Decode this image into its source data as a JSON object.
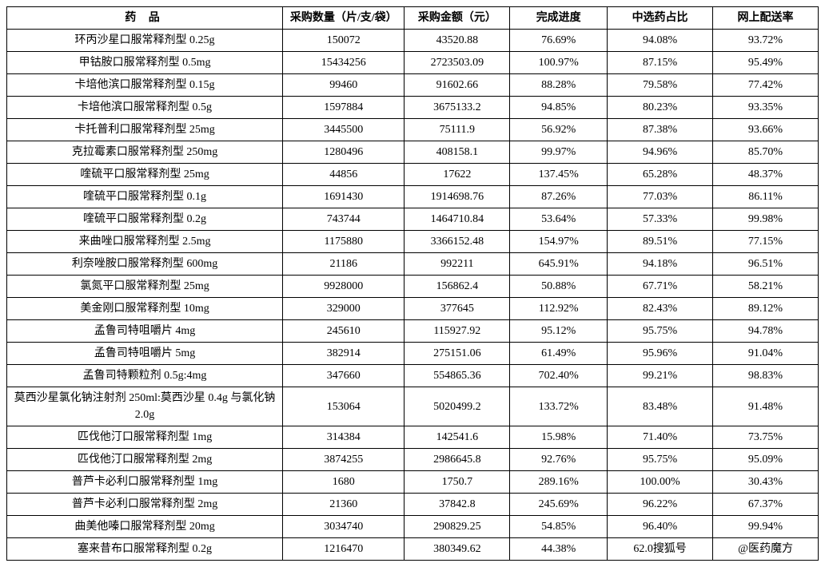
{
  "table": {
    "headers": {
      "drug": "药 品",
      "qty": "采购数量（片/支/袋）",
      "amount": "采购金额（元）",
      "progress": "完成进度",
      "ratio": "中选药占比",
      "delivery": "网上配送率"
    },
    "rows": [
      {
        "drug": "环丙沙星口服常释剂型 0.25g",
        "qty": "150072",
        "amount": "43520.88",
        "progress": "76.69%",
        "ratio": "94.08%",
        "delivery": "93.72%"
      },
      {
        "drug": "甲钴胺口服常释剂型 0.5mg",
        "qty": "15434256",
        "amount": "2723503.09",
        "progress": "100.97%",
        "ratio": "87.15%",
        "delivery": "95.49%"
      },
      {
        "drug": "卡培他滨口服常释剂型 0.15g",
        "qty": "99460",
        "amount": "91602.66",
        "progress": "88.28%",
        "ratio": "79.58%",
        "delivery": "77.42%"
      },
      {
        "drug": "卡培他滨口服常释剂型 0.5g",
        "qty": "1597884",
        "amount": "3675133.2",
        "progress": "94.85%",
        "ratio": "80.23%",
        "delivery": "93.35%"
      },
      {
        "drug": "卡托普利口服常释剂型 25mg",
        "qty": "3445500",
        "amount": "75111.9",
        "progress": "56.92%",
        "ratio": "87.38%",
        "delivery": "93.66%"
      },
      {
        "drug": "克拉霉素口服常释剂型 250mg",
        "qty": "1280496",
        "amount": "408158.1",
        "progress": "99.97%",
        "ratio": "94.96%",
        "delivery": "85.70%"
      },
      {
        "drug": "喹硫平口服常释剂型 25mg",
        "qty": "44856",
        "amount": "17622",
        "progress": "137.45%",
        "ratio": "65.28%",
        "delivery": "48.37%"
      },
      {
        "drug": "喹硫平口服常释剂型 0.1g",
        "qty": "1691430",
        "amount": "1914698.76",
        "progress": "87.26%",
        "ratio": "77.03%",
        "delivery": "86.11%"
      },
      {
        "drug": "喹硫平口服常释剂型 0.2g",
        "qty": "743744",
        "amount": "1464710.84",
        "progress": "53.64%",
        "ratio": "57.33%",
        "delivery": "99.98%"
      },
      {
        "drug": "来曲唑口服常释剂型 2.5mg",
        "qty": "1175880",
        "amount": "3366152.48",
        "progress": "154.97%",
        "ratio": "89.51%",
        "delivery": "77.15%"
      },
      {
        "drug": "利奈唑胺口服常释剂型 600mg",
        "qty": "21186",
        "amount": "992211",
        "progress": "645.91%",
        "ratio": "94.18%",
        "delivery": "96.51%"
      },
      {
        "drug": "氯氮平口服常释剂型 25mg",
        "qty": "9928000",
        "amount": "156862.4",
        "progress": "50.88%",
        "ratio": "67.71%",
        "delivery": "58.21%"
      },
      {
        "drug": "美金刚口服常释剂型 10mg",
        "qty": "329000",
        "amount": "377645",
        "progress": "112.92%",
        "ratio": "82.43%",
        "delivery": "89.12%"
      },
      {
        "drug": "孟鲁司特咀嚼片 4mg",
        "qty": "245610",
        "amount": "115927.92",
        "progress": "95.12%",
        "ratio": "95.75%",
        "delivery": "94.78%"
      },
      {
        "drug": "孟鲁司特咀嚼片 5mg",
        "qty": "382914",
        "amount": "275151.06",
        "progress": "61.49%",
        "ratio": "95.96%",
        "delivery": "91.04%"
      },
      {
        "drug": "孟鲁司特颗粒剂 0.5g:4mg",
        "qty": "347660",
        "amount": "554865.36",
        "progress": "702.40%",
        "ratio": "99.21%",
        "delivery": "98.83%"
      },
      {
        "drug": "莫西沙星氯化钠注射剂 250ml:莫西沙星 0.4g 与氯化钠 2.0g",
        "qty": "153064",
        "amount": "5020499.2",
        "progress": "133.72%",
        "ratio": "83.48%",
        "delivery": "91.48%"
      },
      {
        "drug": "匹伐他汀口服常释剂型 1mg",
        "qty": "314384",
        "amount": "142541.6",
        "progress": "15.98%",
        "ratio": "71.40%",
        "delivery": "73.75%"
      },
      {
        "drug": "匹伐他汀口服常释剂型 2mg",
        "qty": "3874255",
        "amount": "2986645.8",
        "progress": "92.76%",
        "ratio": "95.75%",
        "delivery": "95.09%"
      },
      {
        "drug": "普芦卡必利口服常释剂型 1mg",
        "qty": "1680",
        "amount": "1750.7",
        "progress": "289.16%",
        "ratio": "100.00%",
        "delivery": "30.43%"
      },
      {
        "drug": "普芦卡必利口服常释剂型 2mg",
        "qty": "21360",
        "amount": "37842.8",
        "progress": "245.69%",
        "ratio": "96.22%",
        "delivery": "67.37%"
      },
      {
        "drug": "曲美他嗪口服常释剂型 20mg",
        "qty": "3034740",
        "amount": "290829.25",
        "progress": "54.85%",
        "ratio": "96.40%",
        "delivery": "99.94%"
      },
      {
        "drug": "塞来昔布口服常释剂型 0.2g",
        "qty": "1216470",
        "amount": "380349.62",
        "progress": "44.38%",
        "ratio": "62.0搜狐号",
        "delivery": "@医药魔方"
      }
    ]
  },
  "watermark": "搜狐号@医药魔方",
  "style": {
    "border_color": "#000000",
    "background_color": "#ffffff",
    "text_color": "#000000",
    "font_size": 14,
    "header_font_weight": "bold"
  }
}
